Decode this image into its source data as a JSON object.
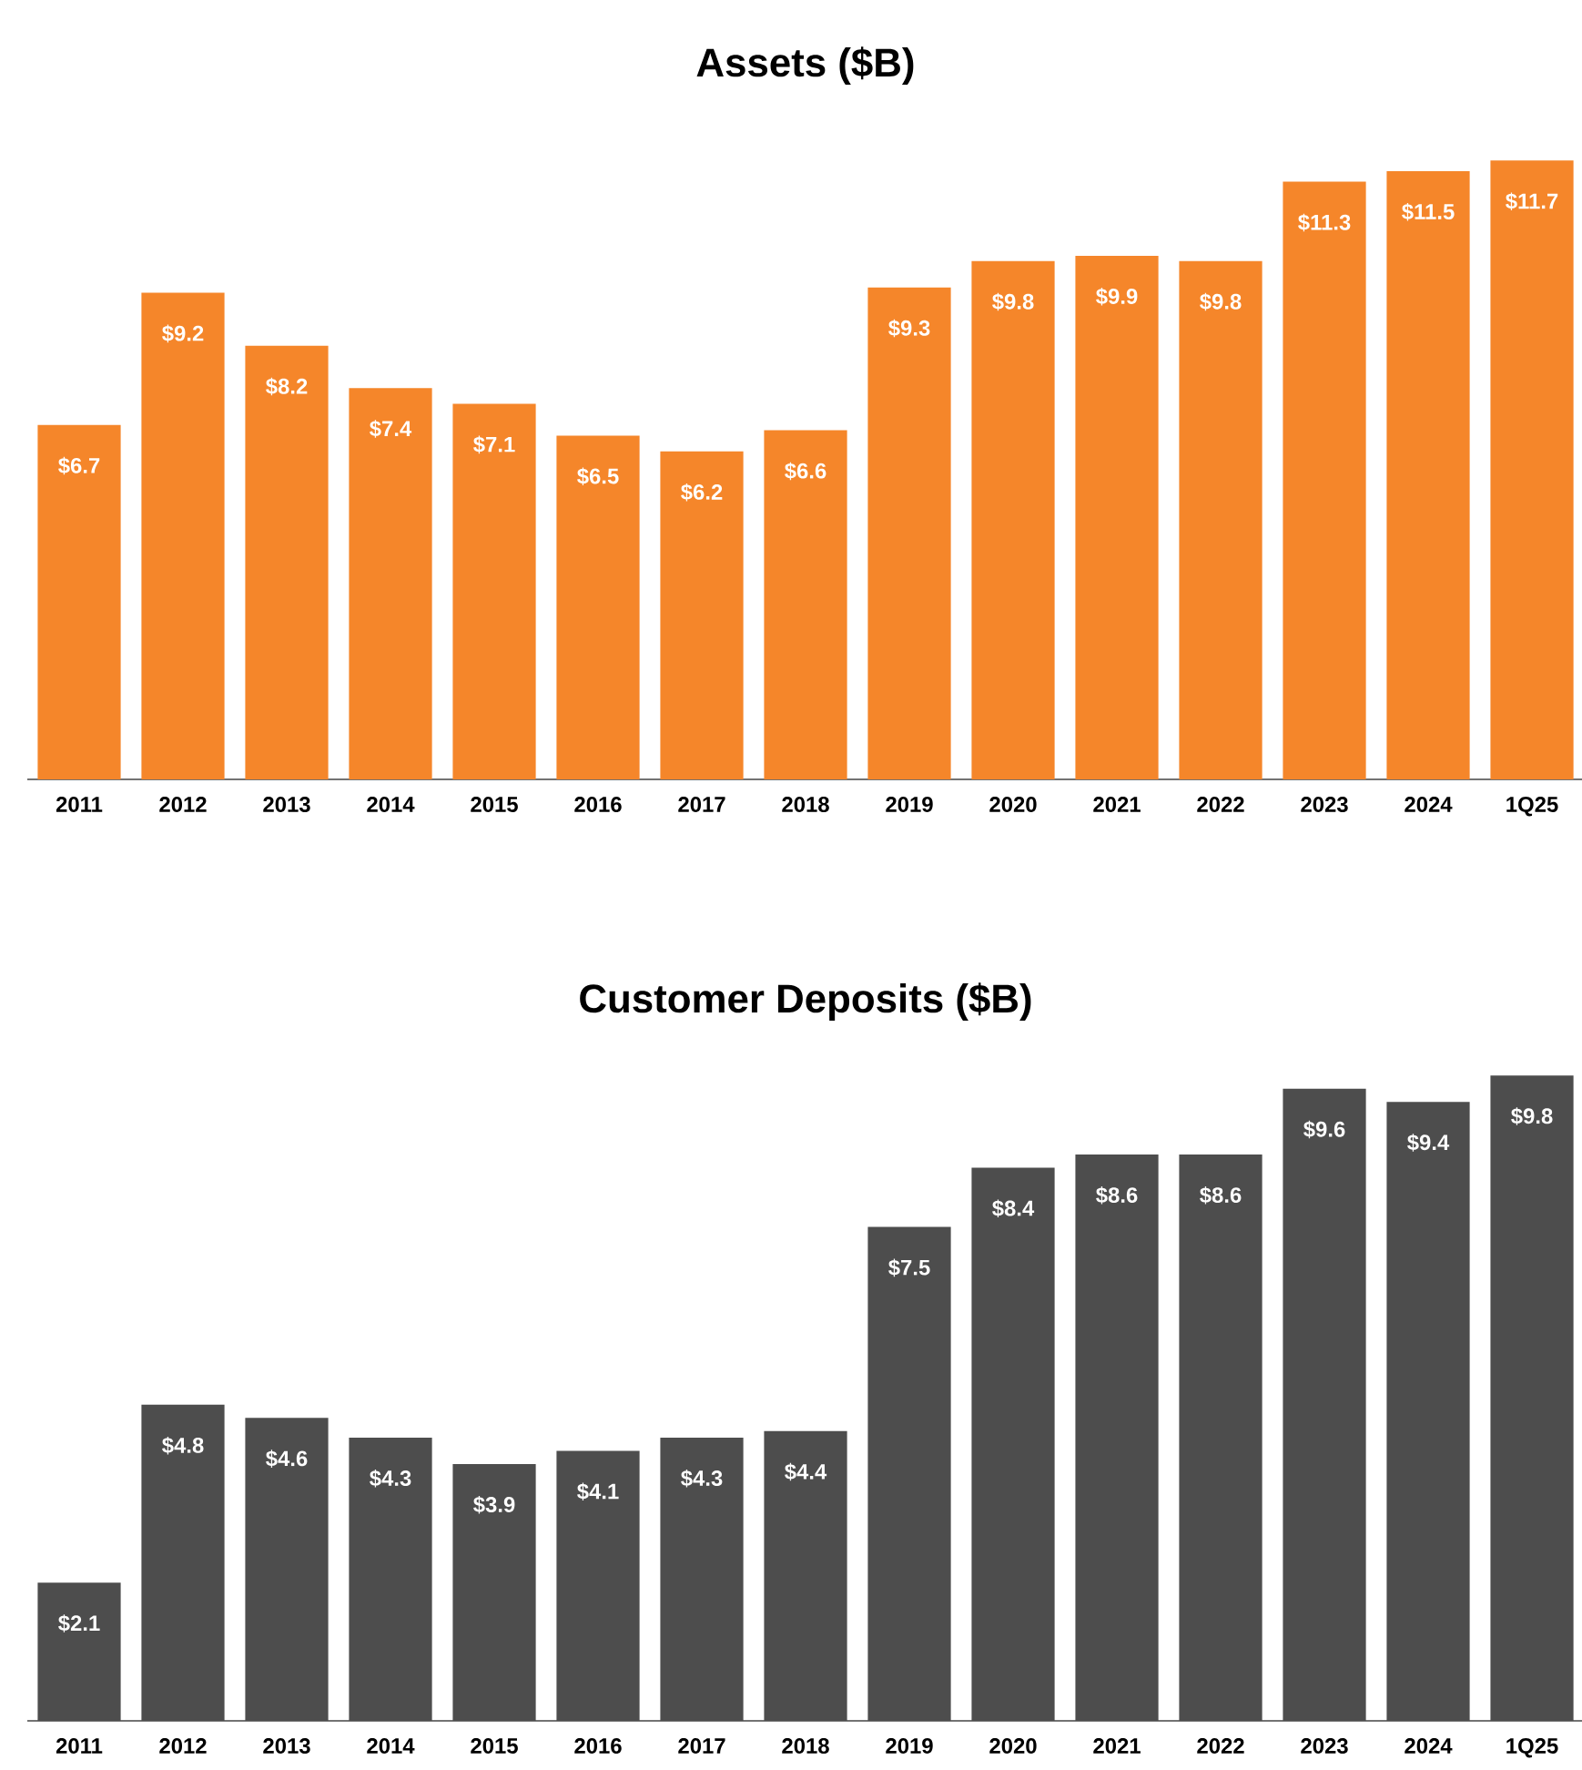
{
  "chart_data": [
    {
      "type": "bar",
      "title": "Assets ($B)",
      "color": "#f5862a",
      "categories": [
        "2011",
        "2012",
        "2013",
        "2014",
        "2015",
        "2016",
        "2017",
        "2018",
        "2019",
        "2020",
        "2021",
        "2022",
        "2023",
        "2024",
        "1Q25"
      ],
      "values": [
        6.7,
        9.2,
        8.2,
        7.4,
        7.1,
        6.5,
        6.2,
        6.6,
        9.3,
        9.8,
        9.9,
        9.8,
        11.3,
        11.5,
        11.7
      ],
      "value_labels": [
        "$6.7",
        "$9.2",
        "$8.2",
        "$7.4",
        "$7.1",
        "$6.5",
        "$6.2",
        "$6.6",
        "$9.3",
        "$9.8",
        "$9.9",
        "$9.8",
        "$11.3",
        "$11.5",
        "$11.7"
      ]
    },
    {
      "type": "bar",
      "title": "Customer Deposits ($B)",
      "color": "#4d4d4d",
      "categories": [
        "2011",
        "2012",
        "2013",
        "2014",
        "2015",
        "2016",
        "2017",
        "2018",
        "2019",
        "2020",
        "2021",
        "2022",
        "2023",
        "2024",
        "1Q25"
      ],
      "values": [
        2.1,
        4.8,
        4.6,
        4.3,
        3.9,
        4.1,
        4.3,
        4.4,
        7.5,
        8.4,
        8.6,
        8.6,
        9.6,
        9.4,
        9.8
      ],
      "value_labels": [
        "$2.1",
        "$4.8",
        "$4.6",
        "$4.3",
        "$3.9",
        "$4.1",
        "$4.3",
        "$4.4",
        "$7.5",
        "$8.4",
        "$8.6",
        "$8.6",
        "$9.6",
        "$9.4",
        "$9.8"
      ]
    }
  ]
}
